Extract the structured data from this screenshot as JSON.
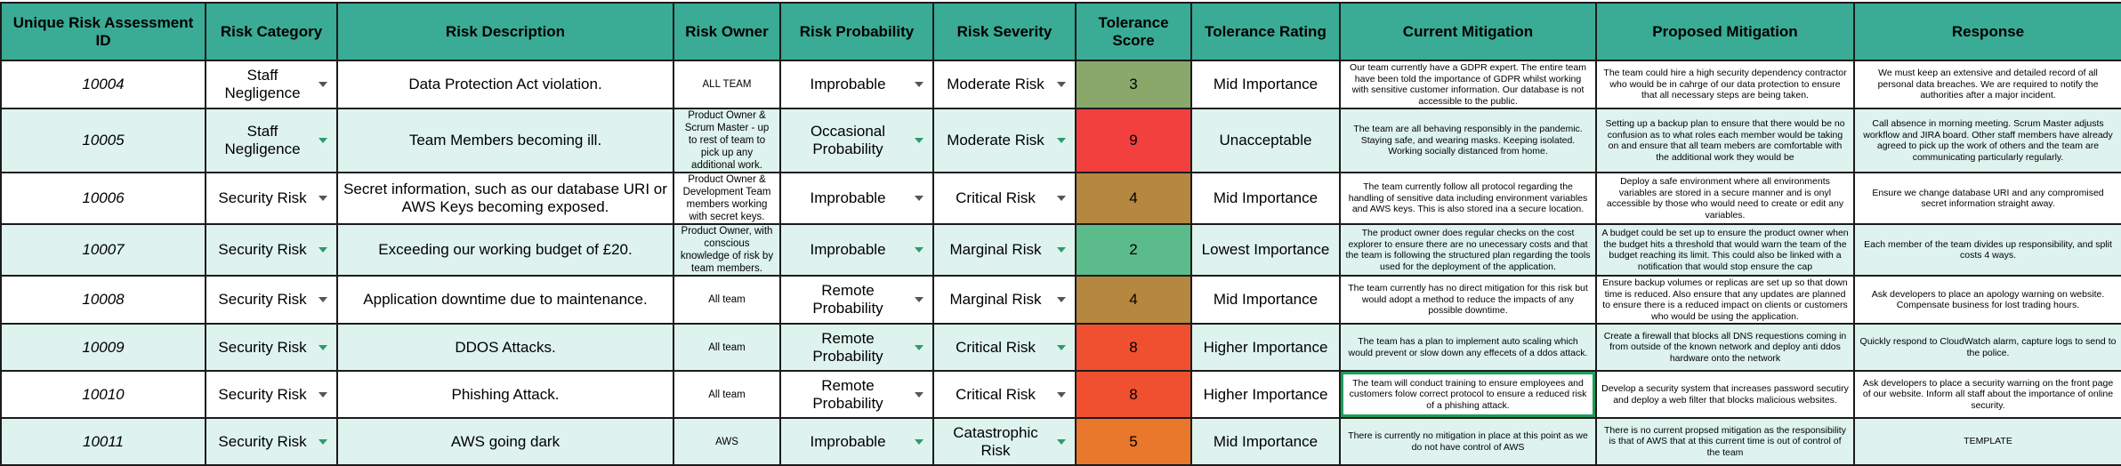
{
  "headers": [
    "Unique Risk Assessment ID",
    "Risk Category",
    "Risk Description",
    "Risk Owner",
    "Risk Probability",
    "Risk Severity",
    "Tolerance Score",
    "Tolerance Rating",
    "Current Mitigation",
    "Proposed Mitigation",
    "Response"
  ],
  "rows": [
    {
      "id": "10004",
      "category": "Staff Negligence",
      "description": "Data Protection Act violation.",
      "owner": "ALL TEAM",
      "probability": "Improbable",
      "severity": "Moderate Risk",
      "score": "3",
      "score_color": "#8aa86a",
      "rating": "Mid Importance",
      "current": "Our team currently have a GDPR expert. The entire team have been told the importance of GDPR whilst working with sensitive customer information. Our database is not accessible to the public.",
      "proposed": "The team could hire a high security dependency contractor who would be in cahrge of our data protection to ensure that all necessary steps are being taken.",
      "response": "We must keep an extensive and detailed record of all personal data breaches. We are required to notify the authorities after a major incident."
    },
    {
      "id": "10005",
      "category": "Staff Negligence",
      "description": "Team Members becoming ill.",
      "owner": "Product Owner & Scrum Master - up to rest of team to pick up any additional work.",
      "probability": "Occasional Probability",
      "severity": "Moderate Risk",
      "score": "9",
      "score_color": "#f2403f",
      "rating": "Unacceptable",
      "current": "The team are all behaving responsibly in the pandemic. Staying safe, and wearing masks. Keeping isolated. Working socially distanced from home.",
      "proposed": "Setting up a backup plan to ensure that there would be no confusion as to what roles each member would be taking on and ensure that all team mebers are comfortable with the additional work they would be",
      "response": "Call absence in morning meeting. Scrum Master adjusts workflow and JIRA board. Other staff members have already agreed to pick up the work of others and the team are communicating particularly regularly."
    },
    {
      "id": "10006",
      "category": "Security Risk",
      "description": "Secret information, such as our database URI or AWS Keys becoming exposed.",
      "owner": "Product Owner & Development Team members working with secret keys.",
      "probability": "Improbable",
      "severity": "Critical Risk",
      "score": "4",
      "score_color": "#b6873f",
      "rating": "Mid Importance",
      "current": "The team currently follow all protocol regarding the handling of sensitive data including environment variables and AWS keys. This is also stored ina a secure location.",
      "proposed": "Deploy a safe environment where all environments variables are stored in a secure manner and is onyl accessible by those who would need to create or edit any variables.",
      "response": "Ensure we change database URI and any compromised secret information straight away."
    },
    {
      "id": "10007",
      "category": "Security Risk",
      "description": "Exceeding our working budget of £20.",
      "owner": "Product Owner, with conscious knowledge of risk by team members.",
      "probability": "Improbable",
      "severity": "Marginal Risk",
      "score": "2",
      "score_color": "#5cbb8a",
      "rating": "Lowest Importance",
      "current": "The product owner does regular checks on the cost explorer to ensure there are no unecessary costs and that the team is following the structured plan regarding the tools used for the deployment of the application.",
      "proposed": "A budget could be set up to ensure the product owner when the budget hits a threshold that would warn the team of the budget reaching its limit. This could also be linked with a notification that would stop ensure the cap",
      "response": "Each member of the team divides up responsibility, and split costs 4 ways."
    },
    {
      "id": "10008",
      "category": "Security Risk",
      "description": "Application downtime due to maintenance.",
      "owner": "All team",
      "probability": "Remote Probability",
      "severity": "Marginal Risk",
      "score": "4",
      "score_color": "#b6873f",
      "rating": "Mid Importance",
      "current": "The team currently has no direct mitigation for this risk but would adopt a method to reduce the impacts of any possible downtime.",
      "proposed": "Ensure backup volumes or replicas are set up so that down time is reduced. Also ensure that any updates are planned to ensure there is a reduced impact on clients or customers who would be using the application.",
      "response": "Ask developers to place an apology warning on website. Compensate business for lost trading hours."
    },
    {
      "id": "10009",
      "category": "Security Risk",
      "description": "DDOS Attacks.",
      "owner": "All team",
      "probability": "Remote Probability",
      "severity": "Critical Risk",
      "score": "8",
      "score_color": "#f0502f",
      "rating": "Higher Importance",
      "current": "The team has a plan to implement auto scaling which would prevent or slow down any effecets of a ddos attack.",
      "proposed": "Create a firewall that blocks all DNS requestions coming in from outside of the known network and deploy anti ddos hardware onto the network",
      "response": "Quickly respond to CloudWatch alarm, capture logs to send to the police."
    },
    {
      "id": "10010",
      "category": "Security Risk",
      "description": "Phishing Attack.",
      "owner": "All team",
      "probability": "Remote Probability",
      "severity": "Critical Risk",
      "score": "8",
      "score_color": "#f0502f",
      "rating": "Higher Importance",
      "current": "The team will conduct training to ensure employees and customers folow correct protocol to ensure a reduced risk of a phishing attack.",
      "proposed": "Develop a security system that increases password secutiry and deploy a web filter that blocks malicious websites.",
      "response": "Ask developers to place a security warning on the front page of our website. Inform all staff about the importance of online security."
    },
    {
      "id": "10011",
      "category": "Security Risk",
      "description": "AWS going dark",
      "owner": "AWS",
      "probability": "Improbable",
      "severity": "Catastrophic Risk",
      "score": "5",
      "score_color": "#e9772c",
      "rating": "Mid Importance",
      "current": "There is currently no mitigation in place at this point as we do not have control of AWS",
      "proposed": "There is no current propsed mitigation as the responsibility is that of AWS that at this current time is out of control of the team",
      "response": "TEMPLATE"
    }
  ]
}
